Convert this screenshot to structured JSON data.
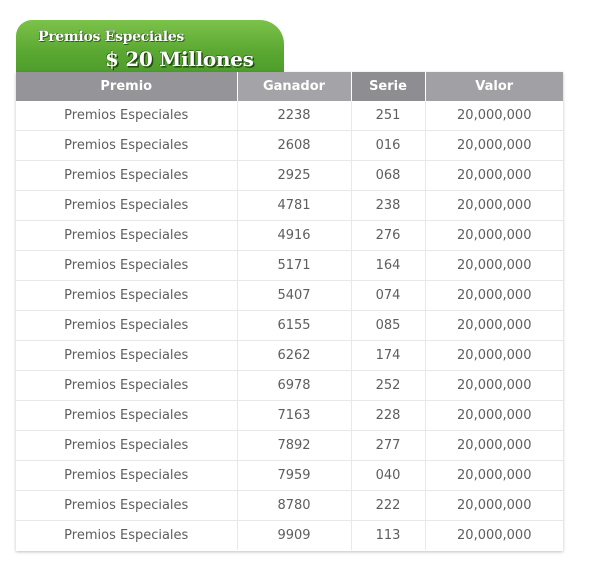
{
  "banner": {
    "subtitle": "Premios Especiales",
    "title": "$ 20 Millones"
  },
  "table": {
    "headers": [
      "Premio",
      "Ganador",
      "Serie",
      "Valor"
    ],
    "rows": [
      [
        "Premios Especiales",
        "2238",
        "251",
        "20,000,000"
      ],
      [
        "Premios Especiales",
        "2608",
        "016",
        "20,000,000"
      ],
      [
        "Premios Especiales",
        "2925",
        "068",
        "20,000,000"
      ],
      [
        "Premios Especiales",
        "4781",
        "238",
        "20,000,000"
      ],
      [
        "Premios Especiales",
        "4916",
        "276",
        "20,000,000"
      ],
      [
        "Premios Especiales",
        "5171",
        "164",
        "20,000,000"
      ],
      [
        "Premios Especiales",
        "5407",
        "074",
        "20,000,000"
      ],
      [
        "Premios Especiales",
        "6155",
        "085",
        "20,000,000"
      ],
      [
        "Premios Especiales",
        "6262",
        "174",
        "20,000,000"
      ],
      [
        "Premios Especiales",
        "6978",
        "252",
        "20,000,000"
      ],
      [
        "Premios Especiales",
        "7163",
        "228",
        "20,000,000"
      ],
      [
        "Premios Especiales",
        "7892",
        "277",
        "20,000,000"
      ],
      [
        "Premios Especiales",
        "7959",
        "040",
        "20,000,000"
      ],
      [
        "Premios Especiales",
        "8780",
        "222",
        "20,000,000"
      ],
      [
        "Premios Especiales",
        "9909",
        "113",
        "20,000,000"
      ]
    ]
  },
  "colors": {
    "banner_green": "#5aa832",
    "header_gray": "#9a9a9f",
    "text_gray": "#5e5e5e"
  }
}
